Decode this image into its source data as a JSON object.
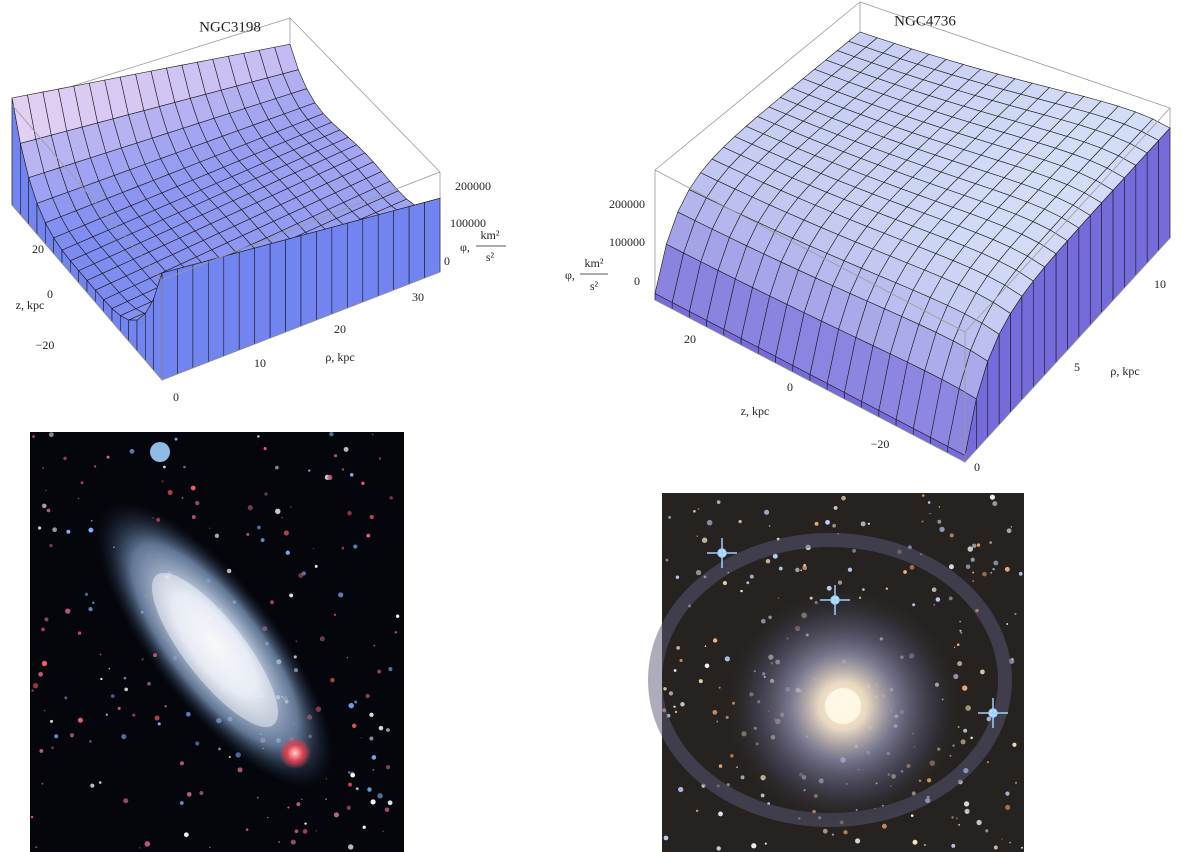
{
  "figures": [
    {
      "title": "NGC3198",
      "phi_axis": {
        "label": "φ,",
        "unit_numerator": "km²",
        "unit_denominator": "s²",
        "ticks": [
          "200000",
          "100000",
          "0"
        ]
      },
      "z_axis": {
        "label": "z, kpc",
        "ticks": [
          "20",
          "0",
          "−20"
        ]
      },
      "rho_axis": {
        "label": "ρ, kpc",
        "ticks": [
          "0",
          "10",
          "20",
          "30"
        ]
      }
    },
    {
      "title": "NGC4736",
      "phi_axis": {
        "label": "φ,",
        "unit_numerator": "km²",
        "unit_denominator": "s²",
        "ticks": [
          "200000",
          "100000",
          "0"
        ]
      },
      "z_axis": {
        "label": "z, kpc",
        "ticks": [
          "20",
          "0",
          "−20"
        ]
      },
      "rho_axis": {
        "label": "ρ, kpc",
        "ticks": [
          "0",
          "5",
          "10"
        ]
      }
    }
  ]
}
